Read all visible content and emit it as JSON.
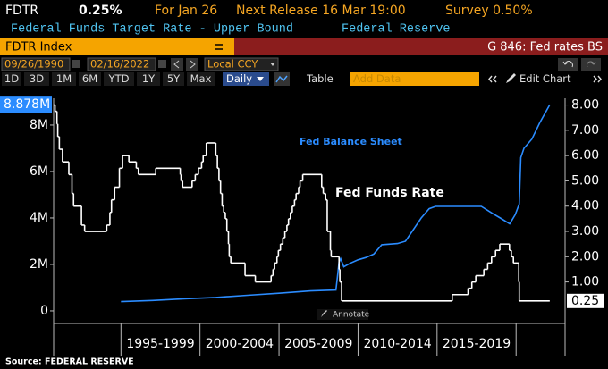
{
  "header": {
    "ticker": "FDTR",
    "last": "0.25%",
    "for": "For Jan 26",
    "next_release": "Next Release 16 Mar 19:00",
    "survey": "Survey 0.50%",
    "description": "Federal Funds Target Rate - Upper Bound",
    "source_org": "Federal Reserve"
  },
  "toolbar": {
    "security": "FDTR Index",
    "page": "G 846: Fed rates BS",
    "start_date": "09/26/1990",
    "end_date": "02/16/2022",
    "currency": "Local CCY",
    "periods": [
      "1D",
      "3D",
      "1M",
      "6M",
      "YTD",
      "1Y",
      "5Y",
      "Max"
    ],
    "frequency": "Daily",
    "table": "Table",
    "add_data": "Add Data",
    "edit_chart": "Edit Chart",
    "annotate": "Annotate"
  },
  "footer": {
    "source": "Source: FEDERAL RESERVE"
  },
  "chart_data": {
    "type": "line",
    "annotations": [
      "Fed Balance Sheet",
      "Fed Funds Rate"
    ],
    "xlim": [
      1990.74,
      2023.1
    ],
    "x_periods": [
      {
        "label": "1995-1999",
        "from": 1995,
        "to": 2000
      },
      {
        "label": "2000-2004",
        "from": 2000,
        "to": 2005
      },
      {
        "label": "2005-2009",
        "from": 2005,
        "to": 2010
      },
      {
        "label": "2010-2014",
        "from": 2010,
        "to": 2015
      },
      {
        "label": "2015-2019",
        "from": 2015,
        "to": 2020
      }
    ],
    "ylim": [
      -0.54,
      8.96
    ],
    "yticks": [
      0,
      {
        "value": 2,
        "label": "2M"
      },
      {
        "value": 4,
        "label": "4M"
      },
      {
        "value": 6,
        "label": "6M"
      },
      {
        "value": 8,
        "label": "8M"
      }
    ],
    "y2lim": [
      -0.64,
      8.09
    ],
    "y2ticks": [
      {
        "value": 1,
        "label": "1.00"
      },
      {
        "value": 2,
        "label": "2.00"
      },
      {
        "value": 3,
        "label": "3.00"
      },
      {
        "value": 4,
        "label": "4.00"
      },
      {
        "value": 5,
        "label": "5.00"
      },
      {
        "value": 6,
        "label": "6.00"
      },
      {
        "value": 7,
        "label": "7.00"
      },
      {
        "value": 8,
        "label": "8.00"
      }
    ],
    "series": [
      {
        "name": "Fed Balance Sheet",
        "color": "#2b8cff",
        "axis": "y",
        "step": false,
        "last_label": "8.878M",
        "x": [
          1995.0,
          1997.0,
          1999.0,
          2001.0,
          2003.0,
          2005.0,
          2007.0,
          2008.6,
          2008.7,
          2008.8,
          2008.9,
          2009.1,
          2009.5,
          2010.0,
          2010.5,
          2011.0,
          2011.5,
          2012.5,
          2013.0,
          2013.5,
          2014.0,
          2014.5,
          2014.9,
          2017.8,
          2018.5,
          2019.0,
          2019.6,
          2019.95,
          2020.2,
          2020.3,
          2020.5,
          2021.0,
          2021.5,
          2022.13
        ],
        "values": [
          0.4,
          0.45,
          0.52,
          0.58,
          0.67,
          0.76,
          0.86,
          0.9,
          1.5,
          2.1,
          2.25,
          1.9,
          2.05,
          2.2,
          2.3,
          2.45,
          2.85,
          2.9,
          3.0,
          3.5,
          4.0,
          4.4,
          4.5,
          4.5,
          4.2,
          4.0,
          3.75,
          4.15,
          4.6,
          6.6,
          7.0,
          7.4,
          8.1,
          8.878
        ]
      },
      {
        "name": "Fed Funds Rate",
        "color": "#ffffff",
        "axis": "y2",
        "step": true,
        "last_label": "0.25",
        "x": [
          1990.74,
          1990.83,
          1990.95,
          1991.0,
          1991.1,
          1991.3,
          1991.7,
          1991.9,
          1992.0,
          1992.5,
          1992.7,
          1994.1,
          1994.3,
          1994.4,
          1994.6,
          1994.9,
          1995.1,
          1995.5,
          1995.97,
          1996.1,
          1997.2,
          1998.75,
          1998.8,
          1998.9,
          1999.5,
          1999.7,
          1999.9,
          2000.1,
          2000.2,
          2000.4,
          2001.0,
          2001.1,
          2001.2,
          2001.3,
          2001.4,
          2001.5,
          2001.6,
          2001.7,
          2001.8,
          2001.85,
          2001.95,
          2002.85,
          2003.5,
          2004.5,
          2004.62,
          2004.72,
          2004.87,
          2004.96,
          2005.09,
          2005.24,
          2005.37,
          2005.5,
          2005.6,
          2005.72,
          2005.84,
          2005.98,
          2006.08,
          2006.24,
          2006.33,
          2006.5,
          2007.7,
          2007.8,
          2007.95,
          2008.05,
          2008.25,
          2008.3,
          2008.8,
          2008.85,
          2008.96,
          2015.96,
          2016.96,
          2017.2,
          2017.45,
          2017.96,
          2018.2,
          2018.45,
          2018.7,
          2018.97,
          2019.58,
          2019.7,
          2019.83,
          2020.17,
          2020.2,
          2022.13
        ],
        "values": [
          8.0,
          7.75,
          7.25,
          6.75,
          6.25,
          5.75,
          5.25,
          4.5,
          4.0,
          3.25,
          3.0,
          3.25,
          3.75,
          4.25,
          4.75,
          5.5,
          6.0,
          5.75,
          5.5,
          5.25,
          5.5,
          5.25,
          5.0,
          4.75,
          5.0,
          5.25,
          5.5,
          5.75,
          6.0,
          6.5,
          6.0,
          5.5,
          5.0,
          4.5,
          4.0,
          3.75,
          3.5,
          3.0,
          2.5,
          2.0,
          1.75,
          1.25,
          1.0,
          1.25,
          1.5,
          1.75,
          2.0,
          2.25,
          2.5,
          2.75,
          3.0,
          3.25,
          3.5,
          3.75,
          4.0,
          4.25,
          4.5,
          4.75,
          5.0,
          5.25,
          4.75,
          4.5,
          4.25,
          3.0,
          2.25,
          2.0,
          1.5,
          1.0,
          0.25,
          0.5,
          0.75,
          1.0,
          1.25,
          1.5,
          1.75,
          2.0,
          2.25,
          2.5,
          2.25,
          2.0,
          1.75,
          1.0,
          0.25,
          0.25
        ]
      }
    ]
  }
}
